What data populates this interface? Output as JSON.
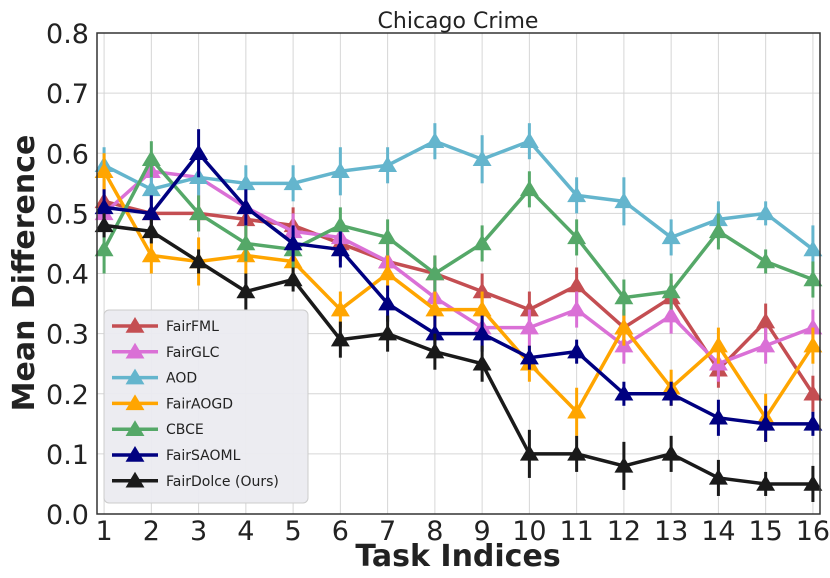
{
  "chart_data": {
    "type": "line",
    "title": "Chicago Crime",
    "xlabel": "Task Indices",
    "ylabel": "Mean Difference",
    "x": [
      1,
      2,
      3,
      4,
      5,
      6,
      7,
      8,
      9,
      10,
      11,
      12,
      13,
      14,
      15,
      16
    ],
    "xlim": [
      0.85,
      16.15
    ],
    "ylim": [
      0.0,
      0.8
    ],
    "yticks": [
      0.0,
      0.1,
      0.2,
      0.3,
      0.4,
      0.5,
      0.6,
      0.7,
      0.8
    ],
    "ytick_labels": [
      "0.0",
      "0.1",
      "0.2",
      "0.3",
      "0.4",
      "0.5",
      "0.6",
      "0.7",
      "0.8"
    ],
    "xtick_labels": [
      "1",
      "2",
      "3",
      "4",
      "5",
      "6",
      "7",
      "8",
      "9",
      "10",
      "11",
      "12",
      "13",
      "14",
      "15",
      "16"
    ],
    "grid": true,
    "legend_position": "lower-left",
    "series": [
      {
        "name": "FairFML",
        "color": "#c44e52",
        "values": [
          0.52,
          0.5,
          0.5,
          0.49,
          0.48,
          0.45,
          0.42,
          0.4,
          0.37,
          0.34,
          0.38,
          0.31,
          0.36,
          0.24,
          0.32,
          0.2
        ],
        "errors": [
          0.03,
          0.03,
          0.03,
          0.03,
          0.03,
          0.03,
          0.03,
          0.03,
          0.03,
          0.03,
          0.03,
          0.03,
          0.03,
          0.03,
          0.03,
          0.03
        ]
      },
      {
        "name": "FairGLC",
        "color": "#da70d6",
        "values": [
          0.5,
          0.57,
          0.56,
          0.51,
          0.47,
          0.46,
          0.42,
          0.36,
          0.31,
          0.31,
          0.34,
          0.28,
          0.33,
          0.25,
          0.28,
          0.31
        ],
        "errors": [
          0.03,
          0.03,
          0.03,
          0.03,
          0.03,
          0.03,
          0.03,
          0.03,
          0.03,
          0.03,
          0.03,
          0.03,
          0.03,
          0.03,
          0.03,
          0.03
        ]
      },
      {
        "name": "AOD",
        "color": "#64b5cd",
        "values": [
          0.58,
          0.54,
          0.56,
          0.55,
          0.55,
          0.57,
          0.58,
          0.62,
          0.59,
          0.62,
          0.53,
          0.52,
          0.46,
          0.49,
          0.5,
          0.44
        ],
        "errors": [
          0.03,
          0.03,
          0.03,
          0.03,
          0.03,
          0.04,
          0.03,
          0.03,
          0.04,
          0.03,
          0.03,
          0.04,
          0.03,
          0.03,
          0.02,
          0.04
        ]
      },
      {
        "name": "FairAOGD",
        "color": "#ffa500",
        "values": [
          0.57,
          0.43,
          0.42,
          0.43,
          0.42,
          0.34,
          0.4,
          0.34,
          0.34,
          0.25,
          0.17,
          0.31,
          0.21,
          0.28,
          0.16,
          0.28
        ],
        "errors": [
          0.03,
          0.03,
          0.04,
          0.03,
          0.03,
          0.03,
          0.03,
          0.03,
          0.03,
          0.03,
          0.04,
          0.03,
          0.03,
          0.03,
          0.04,
          0.03
        ]
      },
      {
        "name": "CBCE",
        "color": "#55a868",
        "values": [
          0.44,
          0.59,
          0.5,
          0.45,
          0.44,
          0.48,
          0.46,
          0.4,
          0.45,
          0.54,
          0.46,
          0.36,
          0.37,
          0.47,
          0.42,
          0.39
        ],
        "errors": [
          0.04,
          0.03,
          0.03,
          0.03,
          0.03,
          0.03,
          0.03,
          0.03,
          0.03,
          0.03,
          0.03,
          0.03,
          0.03,
          0.03,
          0.02,
          0.03
        ]
      },
      {
        "name": "FairSAOML",
        "color": "#000080",
        "values": [
          0.51,
          0.5,
          0.6,
          0.51,
          0.45,
          0.44,
          0.35,
          0.3,
          0.3,
          0.26,
          0.27,
          0.2,
          0.2,
          0.16,
          0.15,
          0.15
        ],
        "errors": [
          0.03,
          0.03,
          0.04,
          0.03,
          0.03,
          0.03,
          0.03,
          0.03,
          0.03,
          0.02,
          0.02,
          0.02,
          0.02,
          0.03,
          0.03,
          0.02
        ]
      },
      {
        "name": "FairDolce (Ours)",
        "color": "#1a1a1a",
        "values": [
          0.48,
          0.47,
          0.42,
          0.37,
          0.39,
          0.29,
          0.3,
          0.27,
          0.25,
          0.1,
          0.1,
          0.08,
          0.1,
          0.06,
          0.05,
          0.05
        ],
        "errors": [
          0.02,
          0.02,
          0.02,
          0.03,
          0.02,
          0.03,
          0.03,
          0.03,
          0.03,
          0.04,
          0.03,
          0.04,
          0.03,
          0.03,
          0.02,
          0.03
        ]
      }
    ]
  }
}
